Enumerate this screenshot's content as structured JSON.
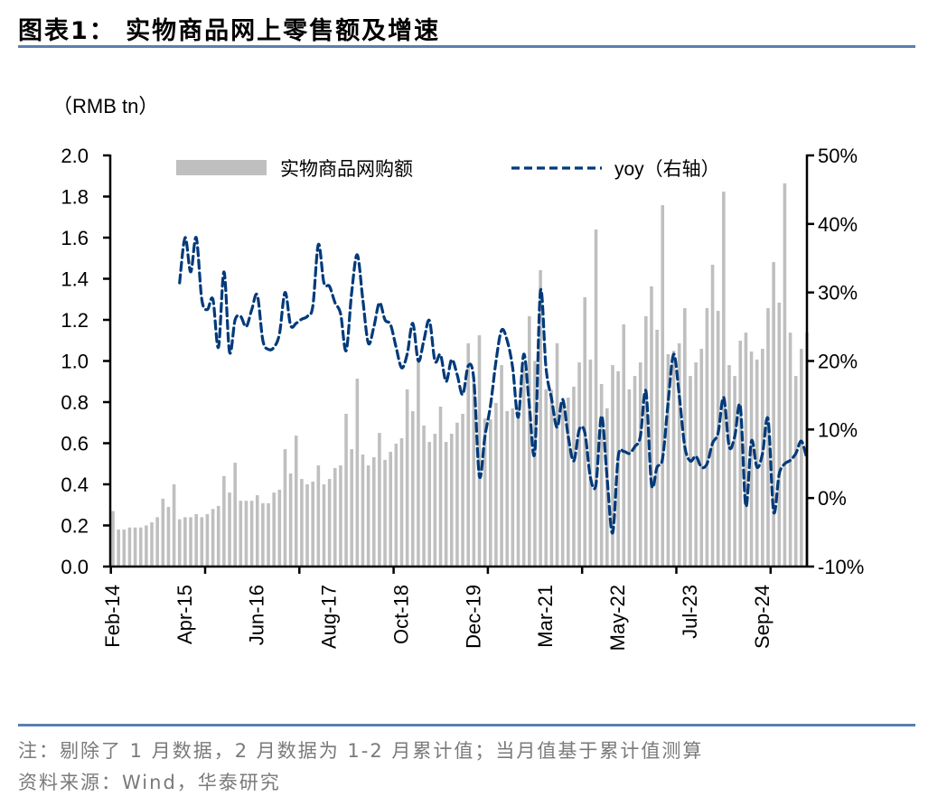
{
  "header": {
    "title": "图表1：  实物商品网上零售额及增速",
    "unit_label": "（RMB tn）"
  },
  "footer": {
    "note": "注：剔除了 1 月数据，2 月数据为 1-2 月累计值；当月值基于累计值测算",
    "source": "资料来源：Wind，华泰研究"
  },
  "colors": {
    "bars": "#bfbfbf",
    "yoy_line": "#003a7a",
    "rule": "#5b7faf"
  },
  "chart_data": {
    "type": "bar+line",
    "title": "实物商品网上零售额及增速",
    "ylabel": "（RMB tn）",
    "ylim": [
      0,
      2.0
    ],
    "yticks": [
      "0.0",
      "0.2",
      "0.4",
      "0.6",
      "0.8",
      "1.0",
      "1.2",
      "1.4",
      "1.6",
      "1.8",
      "2.0"
    ],
    "y2lim": [
      -10,
      50
    ],
    "y2ticks": [
      "-10%",
      "0%",
      "10%",
      "20%",
      "30%",
      "40%",
      "50%"
    ],
    "x_tick_labels": [
      "Feb-14",
      "Apr-15",
      "Jun-16",
      "Aug-17",
      "Oct-18",
      "Dec-19",
      "Mar-21",
      "May-22",
      "Jul-23",
      "Sep-24"
    ],
    "grid": false,
    "legend_position": "top",
    "series": [
      {
        "name": "实物商品网购额",
        "type": "bar",
        "axis": "left",
        "values": [
          0.27,
          0.18,
          0.18,
          0.19,
          0.19,
          0.19,
          0.2,
          0.215,
          0.24,
          0.33,
          0.29,
          0.4,
          0.23,
          0.24,
          0.24,
          0.255,
          0.24,
          0.255,
          0.28,
          0.295,
          0.44,
          0.36,
          0.505,
          0.32,
          0.32,
          0.32,
          0.347,
          0.308,
          0.308,
          0.36,
          0.374,
          0.571,
          0.453,
          0.637,
          0.426,
          0.4,
          0.413,
          0.492,
          0.4,
          0.426,
          0.479,
          0.492,
          0.743,
          0.571,
          0.914,
          0.545,
          0.492,
          0.532,
          0.65,
          0.519,
          0.558,
          0.598,
          0.624,
          0.862,
          0.756,
          0.993,
          0.686,
          0.606,
          0.646,
          0.778,
          0.606,
          0.646,
          0.7,
          0.743,
          1.086,
          0.9,
          1.125,
          0.72,
          0.716,
          0.796,
          0.98,
          0.756,
          0.77,
          0.76,
          0.96,
          1.218,
          1.0,
          1.442,
          0.862,
          0.86,
          1.086,
          0.782,
          0.822,
          0.875,
          0.993,
          1.31,
          1.007,
          1.64,
          0.888,
          0.77,
          0.98,
          0.95,
          1.178,
          0.862,
          0.927,
          0.993,
          1.218,
          1.363,
          1.152,
          1.758,
          1.033,
          1.05,
          1.086,
          1.257,
          0.927,
          0.993,
          1.059,
          1.257,
          1.468,
          1.244,
          1.824,
          0.98,
          0.927,
          1.099,
          1.138,
          1.046,
          1.007,
          1.059,
          1.257,
          1.481,
          1.284,
          1.864,
          1.138,
          0.927,
          1.059,
          1.138
        ]
      },
      {
        "name": "yoy（右轴）",
        "type": "line",
        "axis": "right",
        "style": "dashed",
        "values": [
          null,
          null,
          null,
          null,
          null,
          null,
          null,
          null,
          null,
          null,
          null,
          null,
          31.4,
          38,
          33,
          38,
          29,
          27.5,
          29,
          22,
          33,
          21.3,
          26,
          26.5,
          25,
          27.5,
          29.6,
          23,
          21.7,
          22,
          24,
          30,
          25.2,
          25.5,
          26.1,
          26.5,
          28,
          37,
          31.4,
          30.9,
          28.5,
          26.9,
          21.5,
          30,
          35.5,
          29,
          22.6,
          25,
          28.5,
          26,
          25.3,
          22,
          19,
          21,
          25.5,
          20,
          23,
          25.9,
          20,
          20.9,
          17,
          20.2,
          18,
          15.1,
          19.3,
          17.3,
          3.2,
          9,
          13.5,
          20,
          24.5,
          23,
          19,
          11.8,
          21,
          13.5,
          6.8,
          30.2,
          19,
          14.5,
          10.3,
          14.4,
          9,
          5.4,
          10,
          9.5,
          3,
          2,
          12,
          3,
          -5.1,
          6,
          6.8,
          6.5,
          7.5,
          9,
          15.6,
          2,
          4.5,
          5.8,
          14,
          21,
          15,
          7.5,
          5.4,
          6.1,
          4.5,
          5,
          8,
          9.5,
          14.7,
          7.5,
          9,
          13.4,
          -1.2,
          8.3,
          4.5,
          6.5,
          11.5,
          -2,
          3.5,
          5,
          5.5,
          6.5,
          8.3,
          5.7
        ]
      }
    ]
  }
}
